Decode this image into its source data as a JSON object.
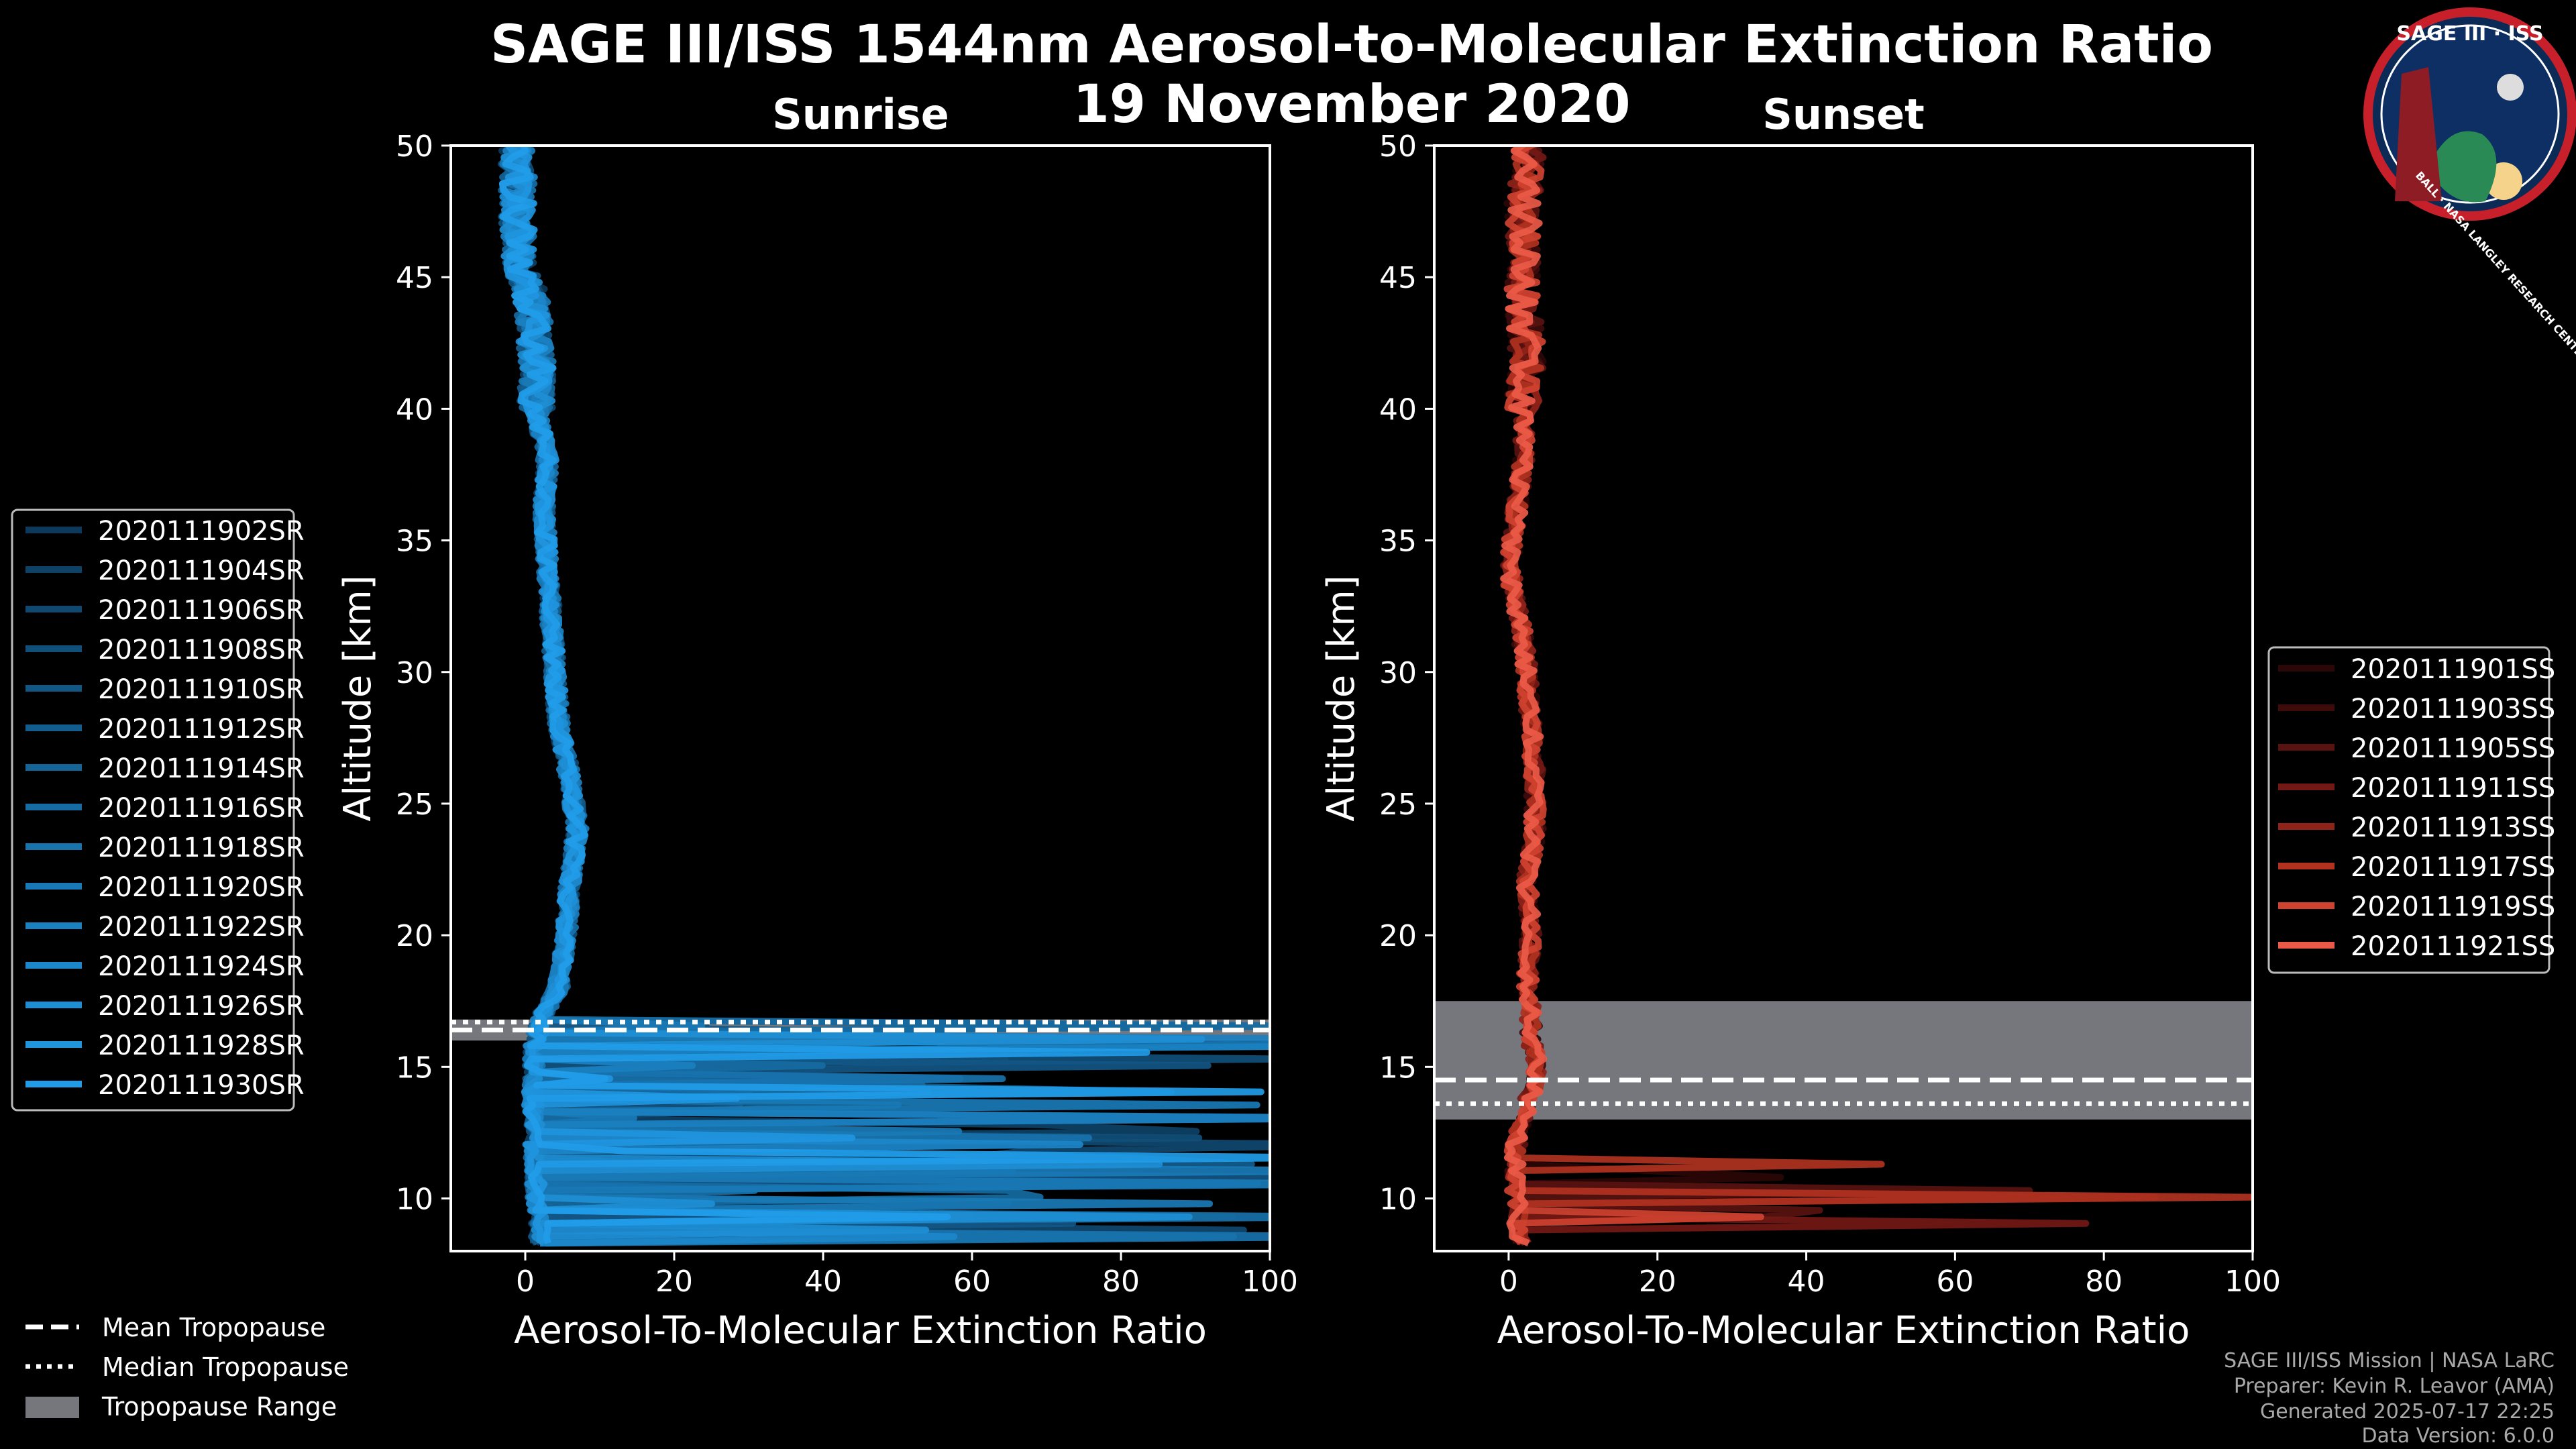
{
  "header": {
    "title": "SAGE III/ISS 1544nm Aerosol-to-Molecular Extinction Ratio",
    "date": "19 November 2020"
  },
  "logo": {
    "text": "SAGE III · ISS",
    "ring_text": "BALL · NASA LANGLEY RESEARCH CENTER · TAS-I · ESA"
  },
  "footer": {
    "line1": "SAGE III/ISS Mission | NASA LaRC",
    "line2": "Preparer: Kevin R. Leavor (AMA)",
    "line3": "Generated 2025-07-17 22:25",
    "line4": "Data Version: 6.0.0"
  },
  "bottom_legend": {
    "mean": "Mean Tropopause",
    "median": "Median Tropopause",
    "range": "Tropopause Range"
  },
  "chart_data": [
    {
      "type": "line",
      "title": "Sunrise",
      "xlabel": "Aerosol-To-Molecular Extinction Ratio",
      "ylabel": "Altitude [km]",
      "xlim": [
        -10,
        100
      ],
      "ylim": [
        8,
        50
      ],
      "xticks": [
        0,
        20,
        40,
        60,
        80,
        100
      ],
      "yticks": [
        10,
        15,
        20,
        25,
        30,
        35,
        40,
        45,
        50
      ],
      "tropopause": {
        "mean": 16.4,
        "median": 16.7,
        "range": [
          16.0,
          16.8
        ]
      },
      "colors": [
        "#0c3a5c",
        "#0d4166",
        "#0f4870",
        "#104f7a",
        "#125684",
        "#135d8e",
        "#156498",
        "#166ba2",
        "#1872ac",
        "#1979b6",
        "#1b80c0",
        "#1c87ca",
        "#1e8ed4",
        "#1f95de",
        "#219ce8"
      ],
      "legend_series": [
        "2020111902SR",
        "2020111904SR",
        "2020111906SR",
        "2020111908SR",
        "2020111910SR",
        "2020111912SR",
        "2020111914SR",
        "2020111916SR",
        "2020111918SR",
        "2020111920SR",
        "2020111922SR",
        "2020111924SR",
        "2020111926SR",
        "2020111928SR",
        "2020111930SR"
      ],
      "base_profile": {
        "alt": [
          8.5,
          10,
          12,
          14,
          16,
          17,
          18,
          20,
          22,
          24,
          26,
          28,
          30,
          32,
          34,
          36,
          38,
          40,
          42,
          44,
          46,
          48,
          50
        ],
        "ratio": [
          2,
          1.5,
          1.2,
          1.0,
          1.3,
          2.5,
          4.5,
          5.5,
          6,
          7,
          6,
          4.5,
          4,
          3.5,
          3,
          2.5,
          3,
          1.5,
          1.5,
          1,
          -1,
          -1,
          -1
        ]
      }
    },
    {
      "type": "line",
      "title": "Sunset",
      "xlabel": "Aerosol-To-Molecular Extinction Ratio",
      "ylabel": "Altitude [km]",
      "xlim": [
        -10,
        100
      ],
      "ylim": [
        8,
        50
      ],
      "xticks": [
        0,
        20,
        40,
        60,
        80,
        100
      ],
      "yticks": [
        10,
        15,
        20,
        25,
        30,
        35,
        40,
        45,
        50
      ],
      "tropopause": {
        "mean": 14.5,
        "median": 13.6,
        "range": [
          13.0,
          17.5
        ]
      },
      "colors": [
        "#2c0707",
        "#3e0b0b",
        "#581210",
        "#731915",
        "#8f2319",
        "#b0321f",
        "#cf4230",
        "#ea5a48"
      ],
      "legend_series": [
        "2020111901SS",
        "2020111903SS",
        "2020111905SS",
        "2020111911SS",
        "2020111913SS",
        "2020111917SS",
        "2020111919SS",
        "2020111921SS"
      ],
      "base_profile": {
        "alt": [
          8.5,
          10,
          12,
          14,
          15,
          16,
          17,
          18,
          20,
          22,
          24,
          26,
          28,
          30,
          32,
          34,
          36,
          38,
          40,
          42,
          44,
          46,
          48,
          50
        ],
        "ratio": [
          1.5,
          1,
          1,
          3,
          4,
          3,
          3,
          2.5,
          3,
          2.5,
          3.5,
          3.5,
          3,
          2.5,
          1.5,
          0,
          1,
          2,
          2,
          2.5,
          2,
          2,
          2,
          3
        ]
      }
    }
  ]
}
